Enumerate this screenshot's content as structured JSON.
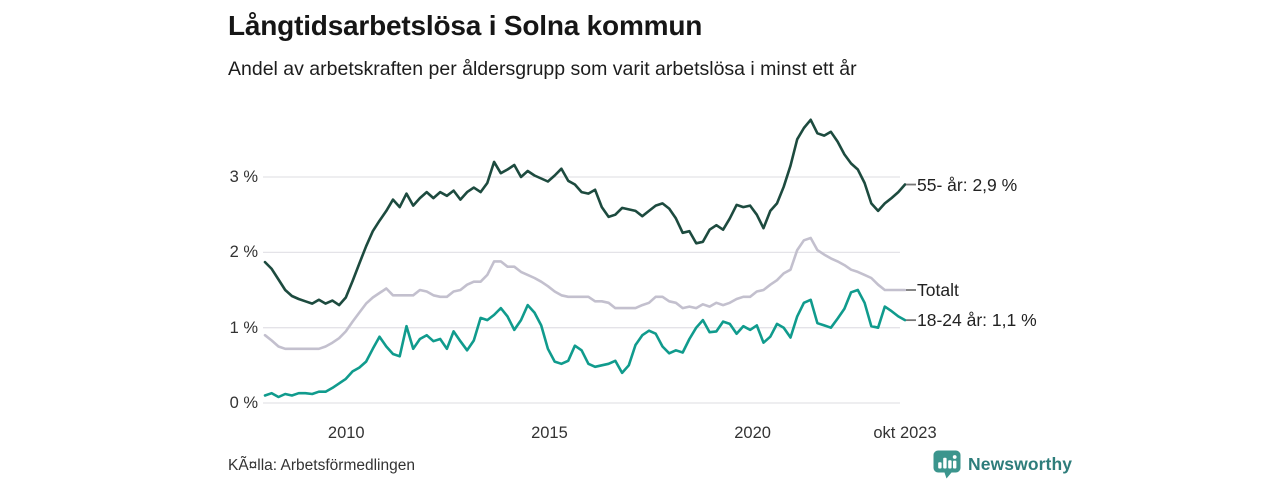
{
  "header": {
    "title": "Långtidsarbetslösa i Solna kommun",
    "subtitle": "Andel av arbetskraften per åldersgrupp som varit arbetslösa i minst ett år"
  },
  "footer": {
    "source": "KÃ¤lla: Arbetsförmedlingen",
    "brand": "Newsworthy"
  },
  "colors": {
    "series_55": "#1d4b3f",
    "series_total": "#c3c0ce",
    "series_1824": "#109b8d",
    "gridline": "#e4e3e8",
    "tick_dash": "#777777",
    "brand_teal": "#2e7d7b",
    "brand_icon": "#3b958d"
  },
  "chart_data": {
    "type": "line",
    "title": "Långtidsarbetslösa i Solna kommun",
    "subtitle": "Andel av arbetskraften per åldersgrupp som varit arbetslösa i minst ett år",
    "xlabel": "",
    "ylabel": "",
    "x_start": 2008.0,
    "x_end": 2023.75,
    "ylim": [
      0,
      3.9
    ],
    "grid": true,
    "legend_position": "line-end-right",
    "y_ticks": [
      {
        "value": 0,
        "label": "0 %"
      },
      {
        "value": 1,
        "label": "1 %"
      },
      {
        "value": 2,
        "label": "2 %"
      },
      {
        "value": 3,
        "label": "3 %"
      }
    ],
    "x_ticks": [
      {
        "value": 2010,
        "label": "2010"
      },
      {
        "value": 2015,
        "label": "2015"
      },
      {
        "value": 2020,
        "label": "2020"
      },
      {
        "value": 2023.75,
        "label": "okt 2023"
      }
    ],
    "series": [
      {
        "name": "Totalt",
        "end_label": "Totalt",
        "end_value": 1.5,
        "color": "#c3c0ce",
        "values": [
          0.9,
          0.83,
          0.75,
          0.72,
          0.72,
          0.72,
          0.72,
          0.72,
          0.72,
          0.75,
          0.8,
          0.86,
          0.95,
          1.08,
          1.2,
          1.32,
          1.4,
          1.46,
          1.52,
          1.43,
          1.43,
          1.43,
          1.43,
          1.5,
          1.48,
          1.43,
          1.41,
          1.41,
          1.48,
          1.5,
          1.57,
          1.61,
          1.61,
          1.7,
          1.88,
          1.88,
          1.81,
          1.81,
          1.74,
          1.7,
          1.66,
          1.61,
          1.55,
          1.48,
          1.43,
          1.41,
          1.41,
          1.41,
          1.41,
          1.35,
          1.35,
          1.33,
          1.26,
          1.26,
          1.26,
          1.26,
          1.3,
          1.33,
          1.41,
          1.41,
          1.35,
          1.33,
          1.26,
          1.28,
          1.26,
          1.31,
          1.28,
          1.33,
          1.3,
          1.33,
          1.38,
          1.41,
          1.41,
          1.48,
          1.5,
          1.57,
          1.63,
          1.72,
          1.77,
          2.03,
          2.16,
          2.19,
          2.03,
          1.97,
          1.92,
          1.88,
          1.83,
          1.77,
          1.74,
          1.7,
          1.66,
          1.57,
          1.5,
          1.5,
          1.5,
          1.5
        ]
      },
      {
        "name": "18-24 år",
        "end_label": "18-24 år: 1,1 %",
        "end_value": 1.1,
        "color": "#109b8d",
        "values": [
          0.1,
          0.13,
          0.08,
          0.12,
          0.1,
          0.13,
          0.13,
          0.12,
          0.15,
          0.15,
          0.2,
          0.26,
          0.32,
          0.42,
          0.47,
          0.55,
          0.72,
          0.88,
          0.75,
          0.65,
          0.62,
          1.02,
          0.72,
          0.85,
          0.9,
          0.82,
          0.85,
          0.72,
          0.95,
          0.82,
          0.7,
          0.83,
          1.13,
          1.1,
          1.17,
          1.26,
          1.15,
          0.97,
          1.1,
          1.3,
          1.2,
          1.03,
          0.72,
          0.55,
          0.52,
          0.56,
          0.76,
          0.7,
          0.52,
          0.48,
          0.5,
          0.52,
          0.56,
          0.4,
          0.5,
          0.77,
          0.9,
          0.96,
          0.92,
          0.75,
          0.66,
          0.7,
          0.67,
          0.85,
          1.0,
          1.1,
          0.94,
          0.95,
          1.08,
          1.05,
          0.92,
          1.02,
          0.97,
          1.03,
          0.8,
          0.88,
          1.05,
          1.0,
          0.87,
          1.15,
          1.33,
          1.37,
          1.06,
          1.03,
          1.0,
          1.12,
          1.25,
          1.47,
          1.5,
          1.33,
          1.02,
          1.0,
          1.28,
          1.22,
          1.15,
          1.1
        ]
      },
      {
        "name": "55- år",
        "end_label": "55- år: 2,9 %",
        "end_value": 2.9,
        "color": "#1d4b3f",
        "values": [
          1.87,
          1.78,
          1.64,
          1.5,
          1.42,
          1.38,
          1.35,
          1.32,
          1.37,
          1.32,
          1.36,
          1.3,
          1.4,
          1.62,
          1.85,
          2.08,
          2.28,
          2.42,
          2.55,
          2.7,
          2.6,
          2.78,
          2.62,
          2.72,
          2.8,
          2.72,
          2.8,
          2.75,
          2.82,
          2.7,
          2.8,
          2.86,
          2.8,
          2.92,
          3.2,
          3.05,
          3.1,
          3.16,
          3.0,
          3.08,
          3.02,
          2.98,
          2.94,
          3.02,
          3.11,
          2.95,
          2.9,
          2.8,
          2.78,
          2.83,
          2.6,
          2.47,
          2.5,
          2.59,
          2.57,
          2.55,
          2.48,
          2.55,
          2.62,
          2.65,
          2.58,
          2.45,
          2.26,
          2.28,
          2.12,
          2.14,
          2.3,
          2.36,
          2.3,
          2.45,
          2.63,
          2.6,
          2.62,
          2.5,
          2.32,
          2.55,
          2.65,
          2.87,
          3.15,
          3.5,
          3.65,
          3.76,
          3.58,
          3.55,
          3.6,
          3.47,
          3.3,
          3.18,
          3.1,
          2.92,
          2.65,
          2.55,
          2.65,
          2.72,
          2.8,
          2.9
        ]
      }
    ]
  }
}
